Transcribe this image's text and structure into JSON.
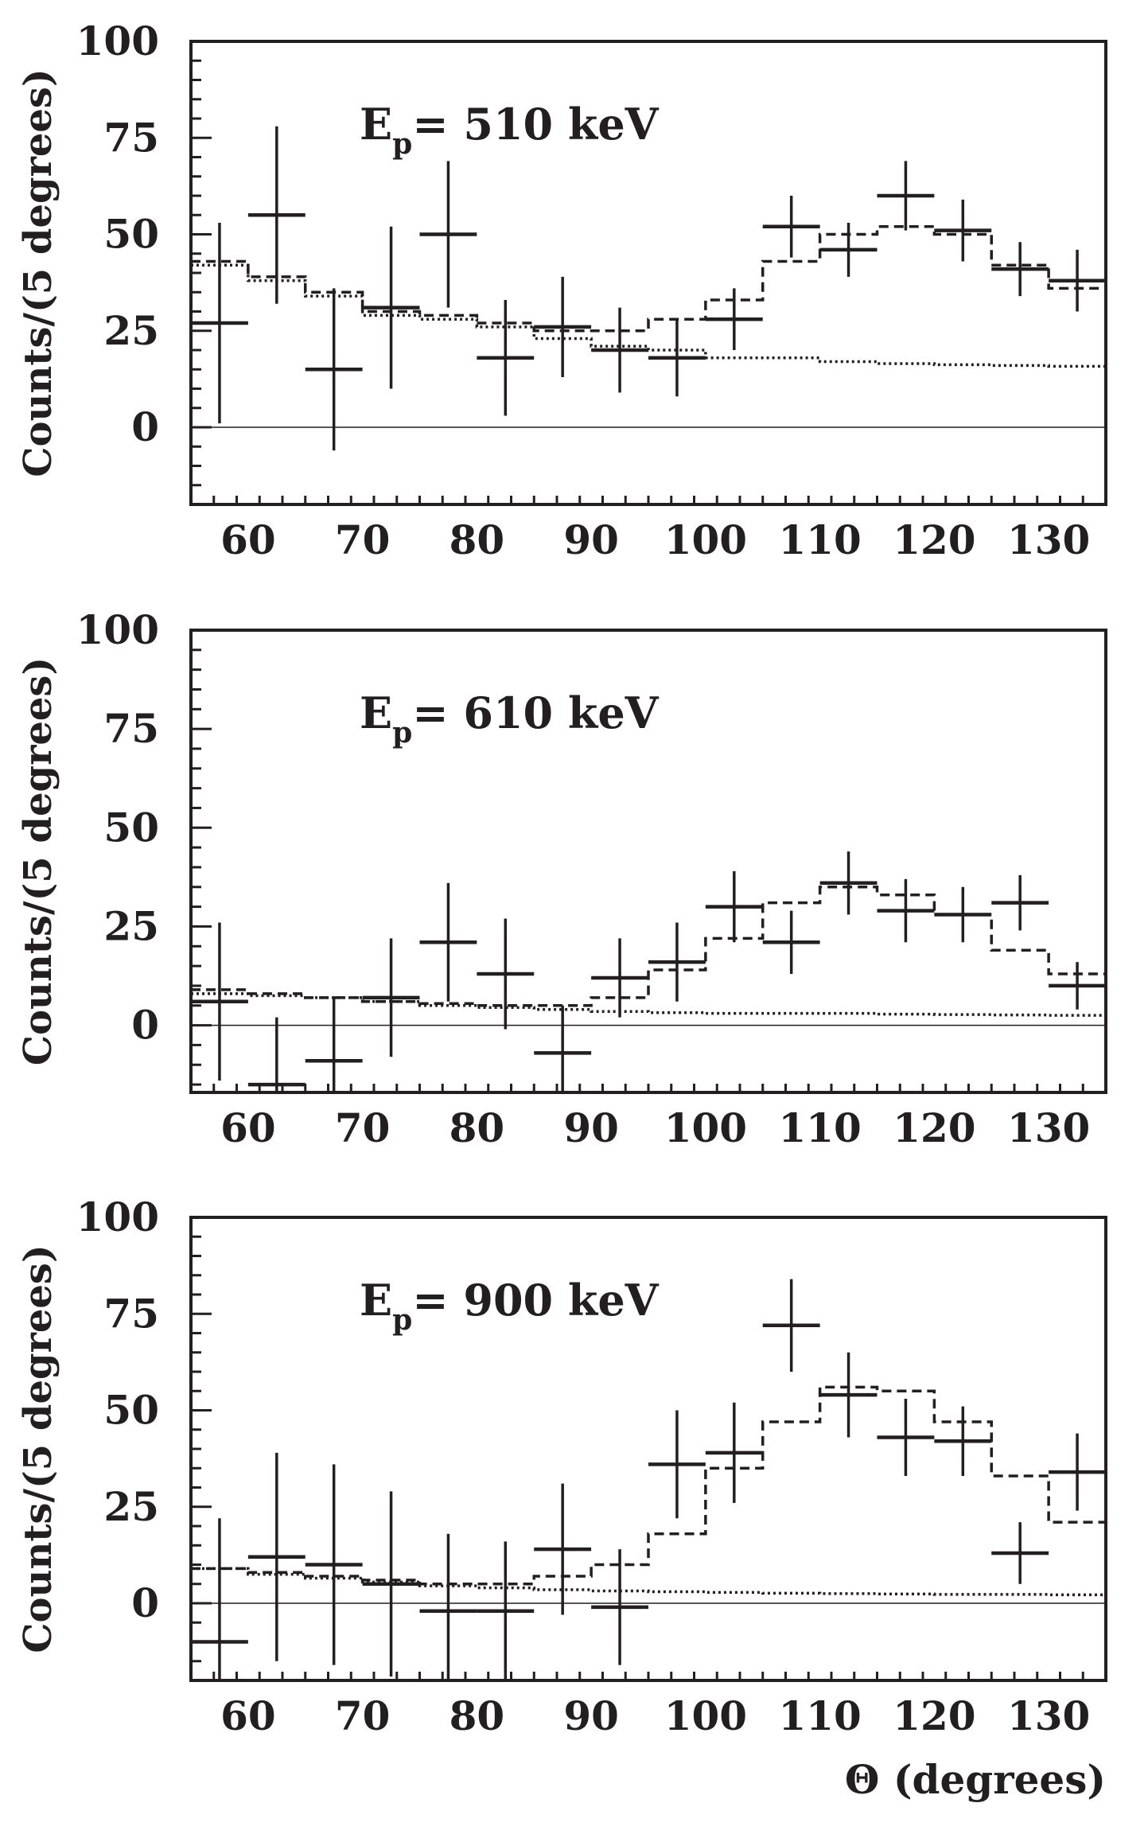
{
  "chart_data": [
    {
      "type": "histogram-with-errorbars",
      "title": "",
      "annotation": {
        "main": "E",
        "sub": "p",
        "rest": "= 510 keV"
      },
      "xlabel": "",
      "ylabel": "Counts/(5 degrees)",
      "xlim": [
        55,
        135
      ],
      "ylim": [
        -20,
        100
      ],
      "xticks": [
        60,
        70,
        80,
        90,
        100,
        110,
        120,
        130
      ],
      "yticks": [
        0,
        25,
        50,
        75,
        100
      ],
      "data_points": {
        "x": [
          57.5,
          62.5,
          67.5,
          72.5,
          77.5,
          82.5,
          87.5,
          92.5,
          97.5,
          102.5,
          107.5,
          112.5,
          117.5,
          122.5,
          127.5,
          132.5
        ],
        "y": [
          27,
          55,
          15,
          31,
          50,
          18,
          26,
          20,
          18,
          28,
          52,
          46,
          60,
          51,
          41,
          38
        ],
        "yerr": [
          26,
          23,
          21,
          21,
          19,
          15,
          13,
          11,
          10,
          8,
          8,
          7,
          9,
          8,
          7,
          8
        ],
        "xerr": 2.5
      },
      "series": [
        {
          "name": "dashed-fit",
          "style": "dashed",
          "edges": [
            55,
            60,
            65,
            70,
            75,
            80,
            85,
            90,
            95,
            100,
            105,
            110,
            115,
            120,
            125,
            130,
            135
          ],
          "values": [
            43,
            39,
            35,
            30,
            29,
            27,
            25,
            25,
            28,
            33,
            43,
            50,
            52,
            50,
            42,
            36
          ]
        },
        {
          "name": "dotted-background",
          "style": "dotted",
          "edges": [
            55,
            60,
            65,
            70,
            75,
            80,
            85,
            90,
            95,
            100,
            105,
            110,
            115,
            120,
            125,
            130,
            135
          ],
          "values": [
            42,
            38,
            34,
            29,
            28,
            26,
            23,
            21,
            20,
            18,
            18,
            17,
            16.5,
            16.2,
            16,
            15.8
          ]
        }
      ]
    },
    {
      "type": "histogram-with-errorbars",
      "title": "",
      "annotation": {
        "main": "E",
        "sub": "p",
        "rest": "= 610 keV"
      },
      "xlabel": "",
      "ylabel": "Counts/(5 degrees)",
      "xlim": [
        55,
        135
      ],
      "ylim": [
        -17,
        100
      ],
      "xticks": [
        60,
        70,
        80,
        90,
        100,
        110,
        120,
        130
      ],
      "yticks": [
        0,
        25,
        50,
        75,
        100
      ],
      "data_points": {
        "x": [
          57.5,
          62.5,
          67.5,
          72.5,
          77.5,
          82.5,
          87.5,
          92.5,
          97.5,
          102.5,
          107.5,
          112.5,
          117.5,
          122.5,
          127.5,
          132.5
        ],
        "y": [
          6,
          -15,
          -9,
          7,
          21,
          13,
          -7,
          12,
          16,
          30,
          21,
          36,
          29,
          28,
          31,
          10
        ],
        "yerr": [
          20,
          17,
          16,
          15,
          15,
          14,
          12,
          10,
          10,
          9,
          8,
          8,
          8,
          7,
          7,
          6
        ],
        "xerr": 2.5
      },
      "series": [
        {
          "name": "dashed-fit",
          "style": "dashed",
          "edges": [
            55,
            60,
            65,
            70,
            75,
            80,
            85,
            90,
            95,
            100,
            105,
            110,
            115,
            120,
            125,
            130,
            135
          ],
          "values": [
            9,
            8,
            7,
            6,
            5.5,
            5,
            5,
            7,
            14,
            22,
            31,
            35,
            33,
            28,
            19,
            13
          ]
        },
        {
          "name": "dotted-background",
          "style": "dotted",
          "edges": [
            55,
            60,
            65,
            70,
            75,
            80,
            85,
            90,
            95,
            100,
            105,
            110,
            115,
            120,
            125,
            130,
            135
          ],
          "values": [
            8,
            7.5,
            7,
            6,
            5,
            4.5,
            4,
            3.5,
            3.2,
            3,
            3,
            3,
            2.8,
            2.7,
            2.6,
            2.5
          ]
        }
      ]
    },
    {
      "type": "histogram-with-errorbars",
      "title": "",
      "annotation": {
        "main": "E",
        "sub": "p",
        "rest": "= 900 keV"
      },
      "xlabel": "Θ (degrees)",
      "ylabel": "Counts/(5 degrees)",
      "xlim": [
        55,
        135
      ],
      "ylim": [
        -20,
        100
      ],
      "xticks": [
        60,
        70,
        80,
        90,
        100,
        110,
        120,
        130
      ],
      "yticks": [
        0,
        25,
        50,
        75,
        100
      ],
      "data_points": {
        "x": [
          57.5,
          62.5,
          67.5,
          72.5,
          77.5,
          82.5,
          87.5,
          92.5,
          97.5,
          102.5,
          107.5,
          112.5,
          117.5,
          122.5,
          127.5,
          132.5
        ],
        "y": [
          -10,
          12,
          10,
          5,
          -2,
          -2,
          14,
          -1,
          36,
          39,
          72,
          54,
          43,
          42,
          13,
          34
        ],
        "yerr": [
          32,
          27,
          26,
          24,
          20,
          18,
          17,
          15,
          14,
          13,
          12,
          11,
          10,
          9,
          8,
          10
        ],
        "xerr": 2.5
      },
      "series": [
        {
          "name": "dashed-fit",
          "style": "dashed",
          "edges": [
            55,
            60,
            65,
            70,
            75,
            80,
            85,
            90,
            95,
            100,
            105,
            110,
            115,
            120,
            125,
            130,
            135
          ],
          "values": [
            9,
            8,
            7,
            6,
            5,
            5,
            7,
            10,
            18,
            35,
            47,
            56,
            55,
            47,
            33,
            21
          ]
        },
        {
          "name": "dotted-background",
          "style": "dotted",
          "edges": [
            55,
            60,
            65,
            70,
            75,
            80,
            85,
            90,
            95,
            100,
            105,
            110,
            115,
            120,
            125,
            130,
            135
          ],
          "values": [
            9,
            7.5,
            6.5,
            5.5,
            4.5,
            4,
            3.5,
            3.2,
            3,
            2.8,
            2.6,
            2.5,
            2.4,
            2.3,
            2.3,
            2.2
          ]
        }
      ]
    }
  ]
}
